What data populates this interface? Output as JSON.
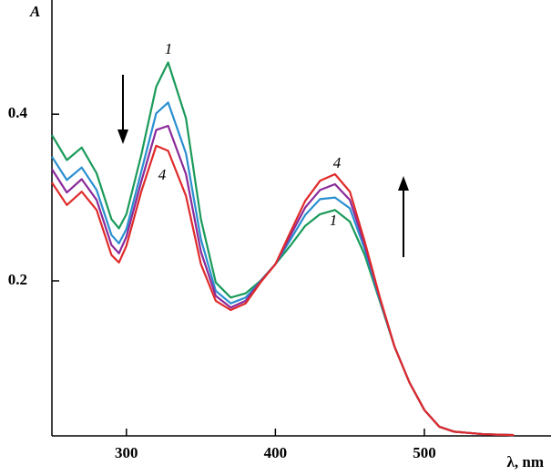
{
  "chart_data": {
    "type": "line",
    "y_label": "A",
    "x_label": "λ, nm",
    "x": [
      250,
      260,
      270,
      280,
      290,
      295,
      300,
      310,
      320,
      328,
      340,
      350,
      360,
      370,
      380,
      390,
      400,
      410,
      420,
      430,
      440,
      450,
      460,
      470,
      480,
      490,
      500,
      510,
      520,
      540,
      560
    ],
    "series": [
      {
        "name": "1",
        "color": "#1a9a5a",
        "values": [
          0.375,
          0.345,
          0.36,
          0.329,
          0.274,
          0.263,
          0.28,
          0.351,
          0.433,
          0.462,
          0.395,
          0.274,
          0.198,
          0.18,
          0.185,
          0.2,
          0.22,
          0.242,
          0.266,
          0.28,
          0.285,
          0.271,
          0.231,
          0.176,
          0.121,
          0.078,
          0.045,
          0.025,
          0.019,
          0.016,
          0.015
        ]
      },
      {
        "color": "#2a8fd0",
        "values": [
          0.349,
          0.321,
          0.336,
          0.309,
          0.255,
          0.245,
          0.262,
          0.331,
          0.401,
          0.414,
          0.353,
          0.25,
          0.188,
          0.173,
          0.18,
          0.199,
          0.22,
          0.249,
          0.279,
          0.298,
          0.3,
          0.287,
          0.238,
          0.178,
          0.121,
          0.078,
          0.045,
          0.025,
          0.019,
          0.016,
          0.015
        ]
      },
      {
        "color": "#8a2a9a",
        "values": [
          0.334,
          0.306,
          0.322,
          0.297,
          0.243,
          0.233,
          0.253,
          0.319,
          0.381,
          0.386,
          0.328,
          0.235,
          0.182,
          0.168,
          0.176,
          0.199,
          0.22,
          0.254,
          0.288,
          0.309,
          0.316,
          0.297,
          0.243,
          0.18,
          0.121,
          0.078,
          0.045,
          0.025,
          0.019,
          0.016,
          0.015
        ]
      },
      {
        "name": "4",
        "color": "#e02a2a",
        "values": [
          0.318,
          0.291,
          0.307,
          0.285,
          0.231,
          0.222,
          0.242,
          0.307,
          0.362,
          0.356,
          0.302,
          0.22,
          0.176,
          0.165,
          0.173,
          0.198,
          0.22,
          0.258,
          0.296,
          0.32,
          0.328,
          0.307,
          0.247,
          0.181,
          0.121,
          0.078,
          0.045,
          0.025,
          0.019,
          0.016,
          0.015
        ]
      }
    ],
    "xlim": [
      250,
      585
    ],
    "ylim": [
      0.014,
      0.537
    ],
    "xticks": [
      300,
      400,
      500
    ],
    "yticks": [
      0.2,
      0.4
    ]
  }
}
